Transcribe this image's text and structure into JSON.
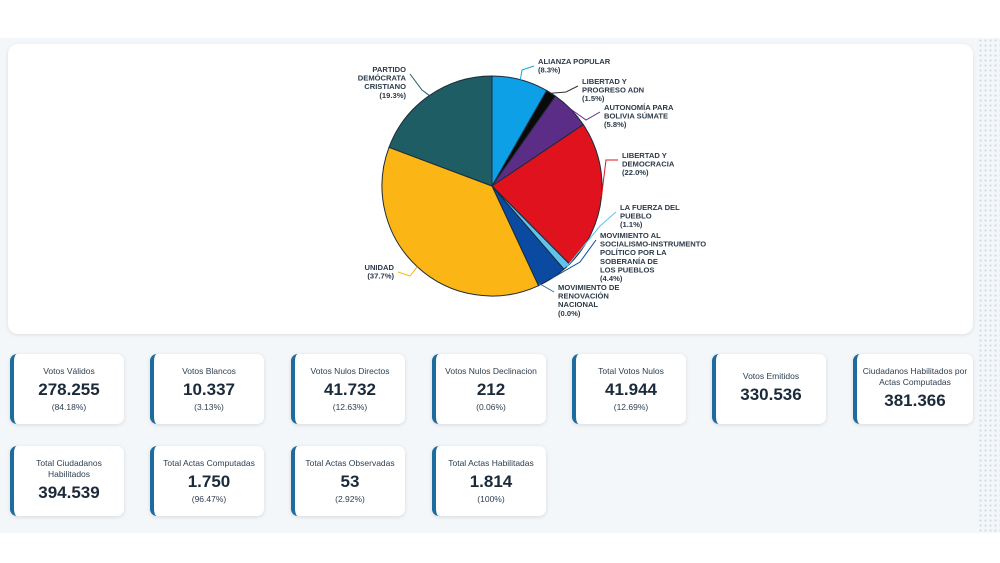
{
  "chart_data": {
    "type": "pie",
    "slices": [
      {
        "label": [
          "ALIANZA POPULAR"
        ],
        "pct_text": "(8.3%)",
        "value": 8.3,
        "color": "#0ea0e6"
      },
      {
        "label": [
          "LIBERTAD Y",
          "PROGRESO ADN"
        ],
        "pct_text": "(1.5%)",
        "value": 1.5,
        "color": "#0a0a0a"
      },
      {
        "label": [
          "AUTONOMÍA PARA",
          "BOLIVIA SÚMATE"
        ],
        "pct_text": "(5.8%)",
        "value": 5.8,
        "color": "#5c2d86"
      },
      {
        "label": [
          "LIBERTAD Y",
          "DEMOCRACIA"
        ],
        "pct_text": "(22.0%)",
        "value": 22.0,
        "color": "#e0121d"
      },
      {
        "label": [
          "LA FUERZA DEL",
          "PUEBLO"
        ],
        "pct_text": "(1.1%)",
        "value": 1.1,
        "color": "#5fc3ec"
      },
      {
        "label": [
          "MOVIMIENTO AL",
          "SOCIALISMO-INSTRUMENTO",
          "POLÍTICO POR LA",
          "SOBERANÍA DE",
          "LOS PUEBLOS"
        ],
        "pct_text": "(4.4%)",
        "value": 4.4,
        "color": "#0a4aa0"
      },
      {
        "label": [
          "MOVIMIENTO DE",
          "RENOVACIÓN",
          "NACIONAL"
        ],
        "pct_text": "(0.0%)",
        "value": 0.0,
        "color": "#3b6e8f"
      },
      {
        "label": [
          "UNIDAD"
        ],
        "pct_text": "(37.7%)",
        "value": 37.7,
        "color": "#fbb514"
      },
      {
        "label": [
          "PARTIDO",
          "DEMÓCRATA",
          "CRISTIANO"
        ],
        "pct_text": "(19.3%)",
        "value": 19.3,
        "color": "#1f5d65"
      }
    ]
  },
  "stats": [
    {
      "label": "Votos Válidos",
      "value": "278.255",
      "pct": "(84.18%)"
    },
    {
      "label": "Votos Blancos",
      "value": "10.337",
      "pct": "(3.13%)"
    },
    {
      "label": "Votos Nulos Directos",
      "value": "41.732",
      "pct": "(12.63%)"
    },
    {
      "label": "Votos Nulos Declinacion",
      "value": "212",
      "pct": "(0.06%)"
    },
    {
      "label": "Total Votos Nulos",
      "value": "41.944",
      "pct": "(12.69%)"
    },
    {
      "label": "Votos Emitidos",
      "value": "330.536",
      "pct": ""
    },
    {
      "label": "Ciudadanos Habilitados por Actas Computadas",
      "value": "381.366",
      "pct": ""
    },
    {
      "label": "Total Ciudadanos Habilitados",
      "value": "394.539",
      "pct": ""
    },
    {
      "label": "Total Actas Computadas",
      "value": "1.750",
      "pct": "(96.47%)"
    },
    {
      "label": "Total Actas Observadas",
      "value": "53",
      "pct": "(2.92%)"
    },
    {
      "label": "Total Actas Habilitadas",
      "value": "1.814",
      "pct": "(100%)"
    }
  ]
}
